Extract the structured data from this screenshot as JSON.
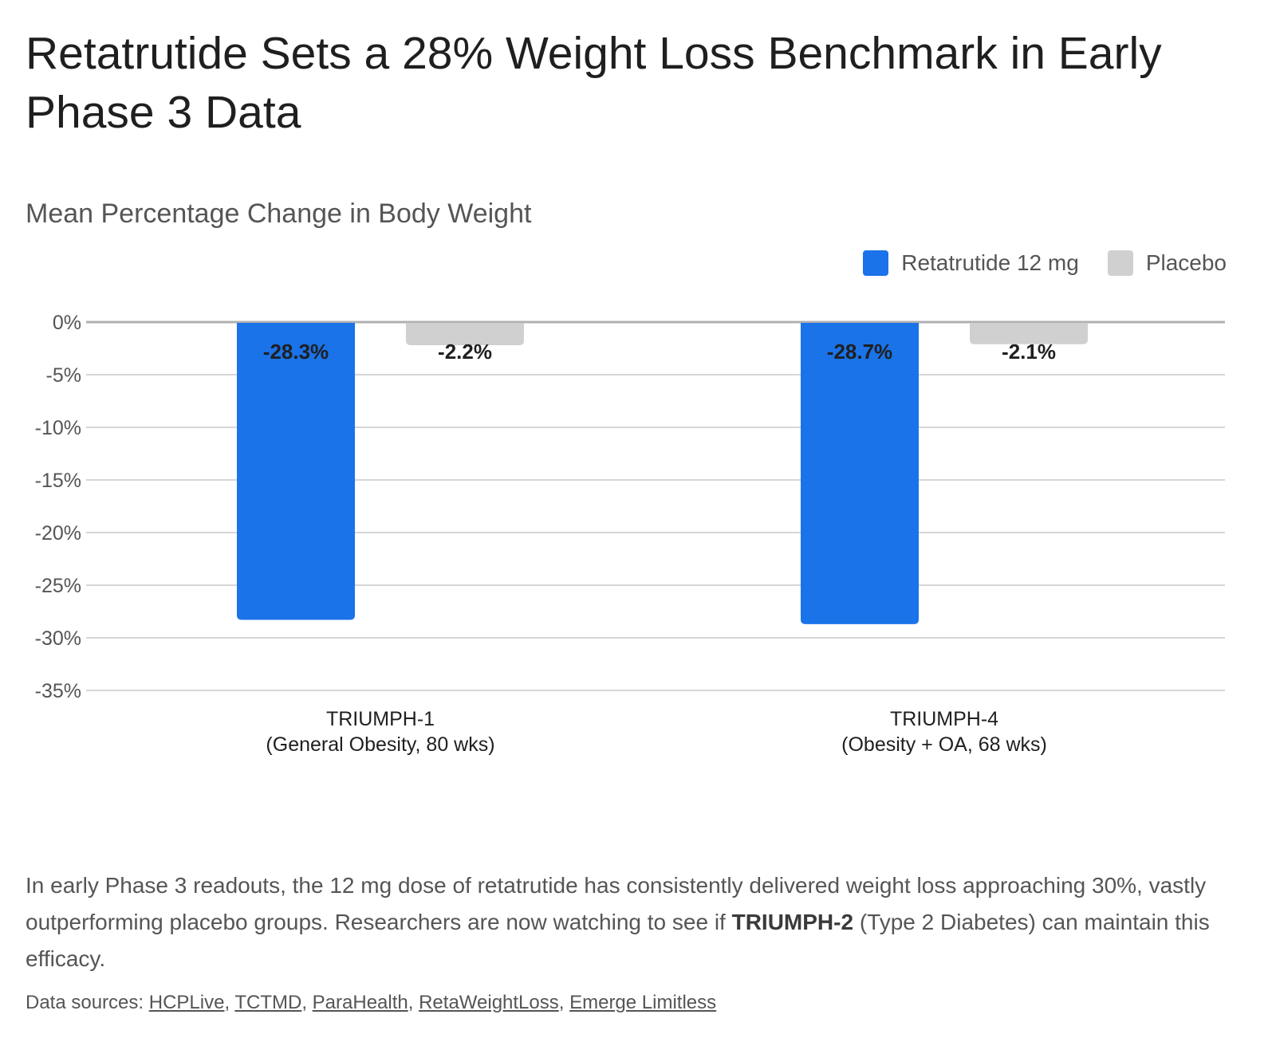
{
  "title": "Retatrutide Sets a 28% Weight Loss Benchmark in Early Phase 3 Data",
  "colors": {
    "retatrutide": "#1a73e8",
    "placebo": "#d0d0d0",
    "grid": "#c8c8c8",
    "zero_line": "#b0b0b0"
  },
  "chart_data": {
    "type": "bar",
    "title": "Mean Percentage Change in Body Weight",
    "xlabel": "",
    "ylabel": "",
    "ylim": [
      -35,
      0
    ],
    "yticks": [
      0,
      -5,
      -10,
      -15,
      -20,
      -25,
      -30,
      -35
    ],
    "ytick_labels": [
      "0%",
      "-5%",
      "-10%",
      "-15%",
      "-20%",
      "-25%",
      "-30%",
      "-35%"
    ],
    "categories": [
      [
        "TRIUMPH-1",
        "(General Obesity, 80 wks)"
      ],
      [
        "TRIUMPH-4",
        "(Obesity + OA, 68 wks)"
      ]
    ],
    "series": [
      {
        "name": "Retatrutide 12 mg",
        "values": [
          -28.3,
          -28.7
        ],
        "labels": [
          "-28.3%",
          "-28.7%"
        ],
        "color": "#1a73e8"
      },
      {
        "name": "Placebo",
        "values": [
          -2.2,
          -2.1
        ],
        "labels": [
          "-2.2%",
          "-2.1%"
        ],
        "color": "#d0d0d0"
      }
    ],
    "grid": true,
    "legend_position": "top-right"
  },
  "note": {
    "before": "In early Phase 3 readouts, the 12 mg dose of retatrutide has consistently delivered weight loss approaching 30%, vastly outperforming placebo groups. Researchers are now watching to see if ",
    "bold": "TRIUMPH-2",
    "after": " (Type 2 Diabetes) can maintain this efficacy."
  },
  "sources": {
    "prefix": "Data sources: ",
    "links": [
      "HCPLive",
      "TCTMD",
      "ParaHealth",
      "RetaWeightLoss",
      "Emerge Limitless"
    ]
  }
}
